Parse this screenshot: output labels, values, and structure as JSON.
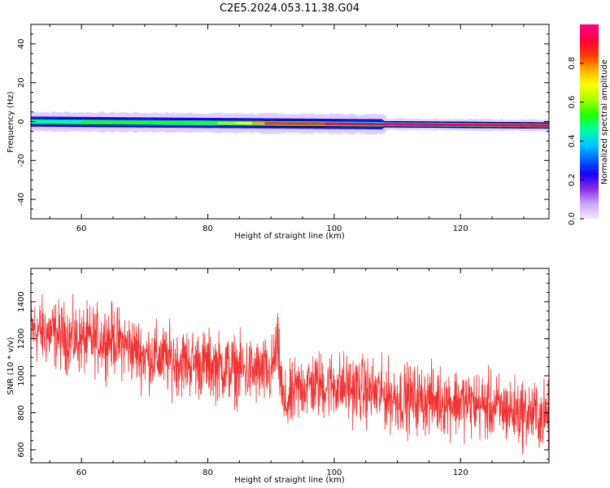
{
  "figure_title": "C2E5.2024.053.11.38.G04",
  "chart_data": [
    {
      "type": "heatmap",
      "xlabel": "Height of straight line (km)",
      "ylabel": "Frequency (Hz)",
      "xlim": [
        52,
        134
      ],
      "ylim": [
        -50,
        50
      ],
      "xticks": [
        60,
        80,
        100,
        120
      ],
      "xtick_labels": [
        "60",
        "80",
        "100",
        "120"
      ],
      "yticks": [
        -40,
        -20,
        0,
        20,
        40
      ],
      "ytick_labels": [
        "-40",
        "-20",
        "0",
        "20",
        "40"
      ],
      "colorbar": {
        "label": "Normalized spectral amplitude",
        "range": [
          0,
          1
        ],
        "ticks": [
          0.0,
          0.2,
          0.4,
          0.6,
          0.8
        ],
        "tick_labels": [
          "0.0",
          "0.2",
          "0.4",
          "0.6",
          "0.8"
        ],
        "colors": [
          "#f0e8ff",
          "#c9a8ff",
          "#8a2be2",
          "#1a00ff",
          "#0066ff",
          "#00ccff",
          "#00ff99",
          "#22ff00",
          "#aaff00",
          "#ffff00",
          "#ffaa00",
          "#ff3300",
          "#ff0040",
          "#ff0088"
        ]
      },
      "band": {
        "center_freq_start": 0,
        "center_freq_end": -2,
        "peak_ridge": [
          {
            "x": 52,
            "amplitude": 0.45
          },
          {
            "x": 60,
            "amplitude": 0.5
          },
          {
            "x": 70,
            "amplitude": 0.5
          },
          {
            "x": 80,
            "amplitude": 0.55
          },
          {
            "x": 86,
            "amplitude": 0.7
          },
          {
            "x": 90,
            "amplitude": 0.85
          },
          {
            "x": 95,
            "amplitude": 0.85
          },
          {
            "x": 100,
            "amplitude": 0.9
          },
          {
            "x": 110,
            "amplitude": 0.92
          },
          {
            "x": 120,
            "amplitude": 0.95
          },
          {
            "x": 134,
            "amplitude": 0.95
          }
        ]
      },
      "grid": false
    },
    {
      "type": "line",
      "xlabel": "Height of straight line (km)",
      "ylabel": "SNR (10 * v/v)",
      "xlim": [
        52,
        134
      ],
      "ylim": [
        530,
        1580
      ],
      "xticks": [
        60,
        80,
        100,
        120
      ],
      "xtick_labels": [
        "60",
        "80",
        "100",
        "120"
      ],
      "yticks": [
        600,
        800,
        1000,
        1200,
        1400
      ],
      "ytick_labels": [
        "600",
        "800",
        "1000",
        "1200",
        "1400"
      ],
      "series": [
        {
          "color": "#f03333",
          "trend_points": [
            {
              "x": 52,
              "y": 1250
            },
            {
              "x": 55,
              "y": 1230
            },
            {
              "x": 60,
              "y": 1190
            },
            {
              "x": 65,
              "y": 1200
            },
            {
              "x": 70,
              "y": 1110
            },
            {
              "x": 75,
              "y": 1080
            },
            {
              "x": 80,
              "y": 1060
            },
            {
              "x": 85,
              "y": 1030
            },
            {
              "x": 90,
              "y": 1010
            },
            {
              "x": 91,
              "y": 1160
            },
            {
              "x": 92,
              "y": 830
            },
            {
              "x": 95,
              "y": 950
            },
            {
              "x": 100,
              "y": 950
            },
            {
              "x": 105,
              "y": 920
            },
            {
              "x": 110,
              "y": 880
            },
            {
              "x": 115,
              "y": 870
            },
            {
              "x": 120,
              "y": 860
            },
            {
              "x": 125,
              "y": 830
            },
            {
              "x": 130,
              "y": 800
            },
            {
              "x": 134,
              "y": 780
            }
          ],
          "noise_amplitude": 90
        }
      ],
      "grid": false
    }
  ]
}
